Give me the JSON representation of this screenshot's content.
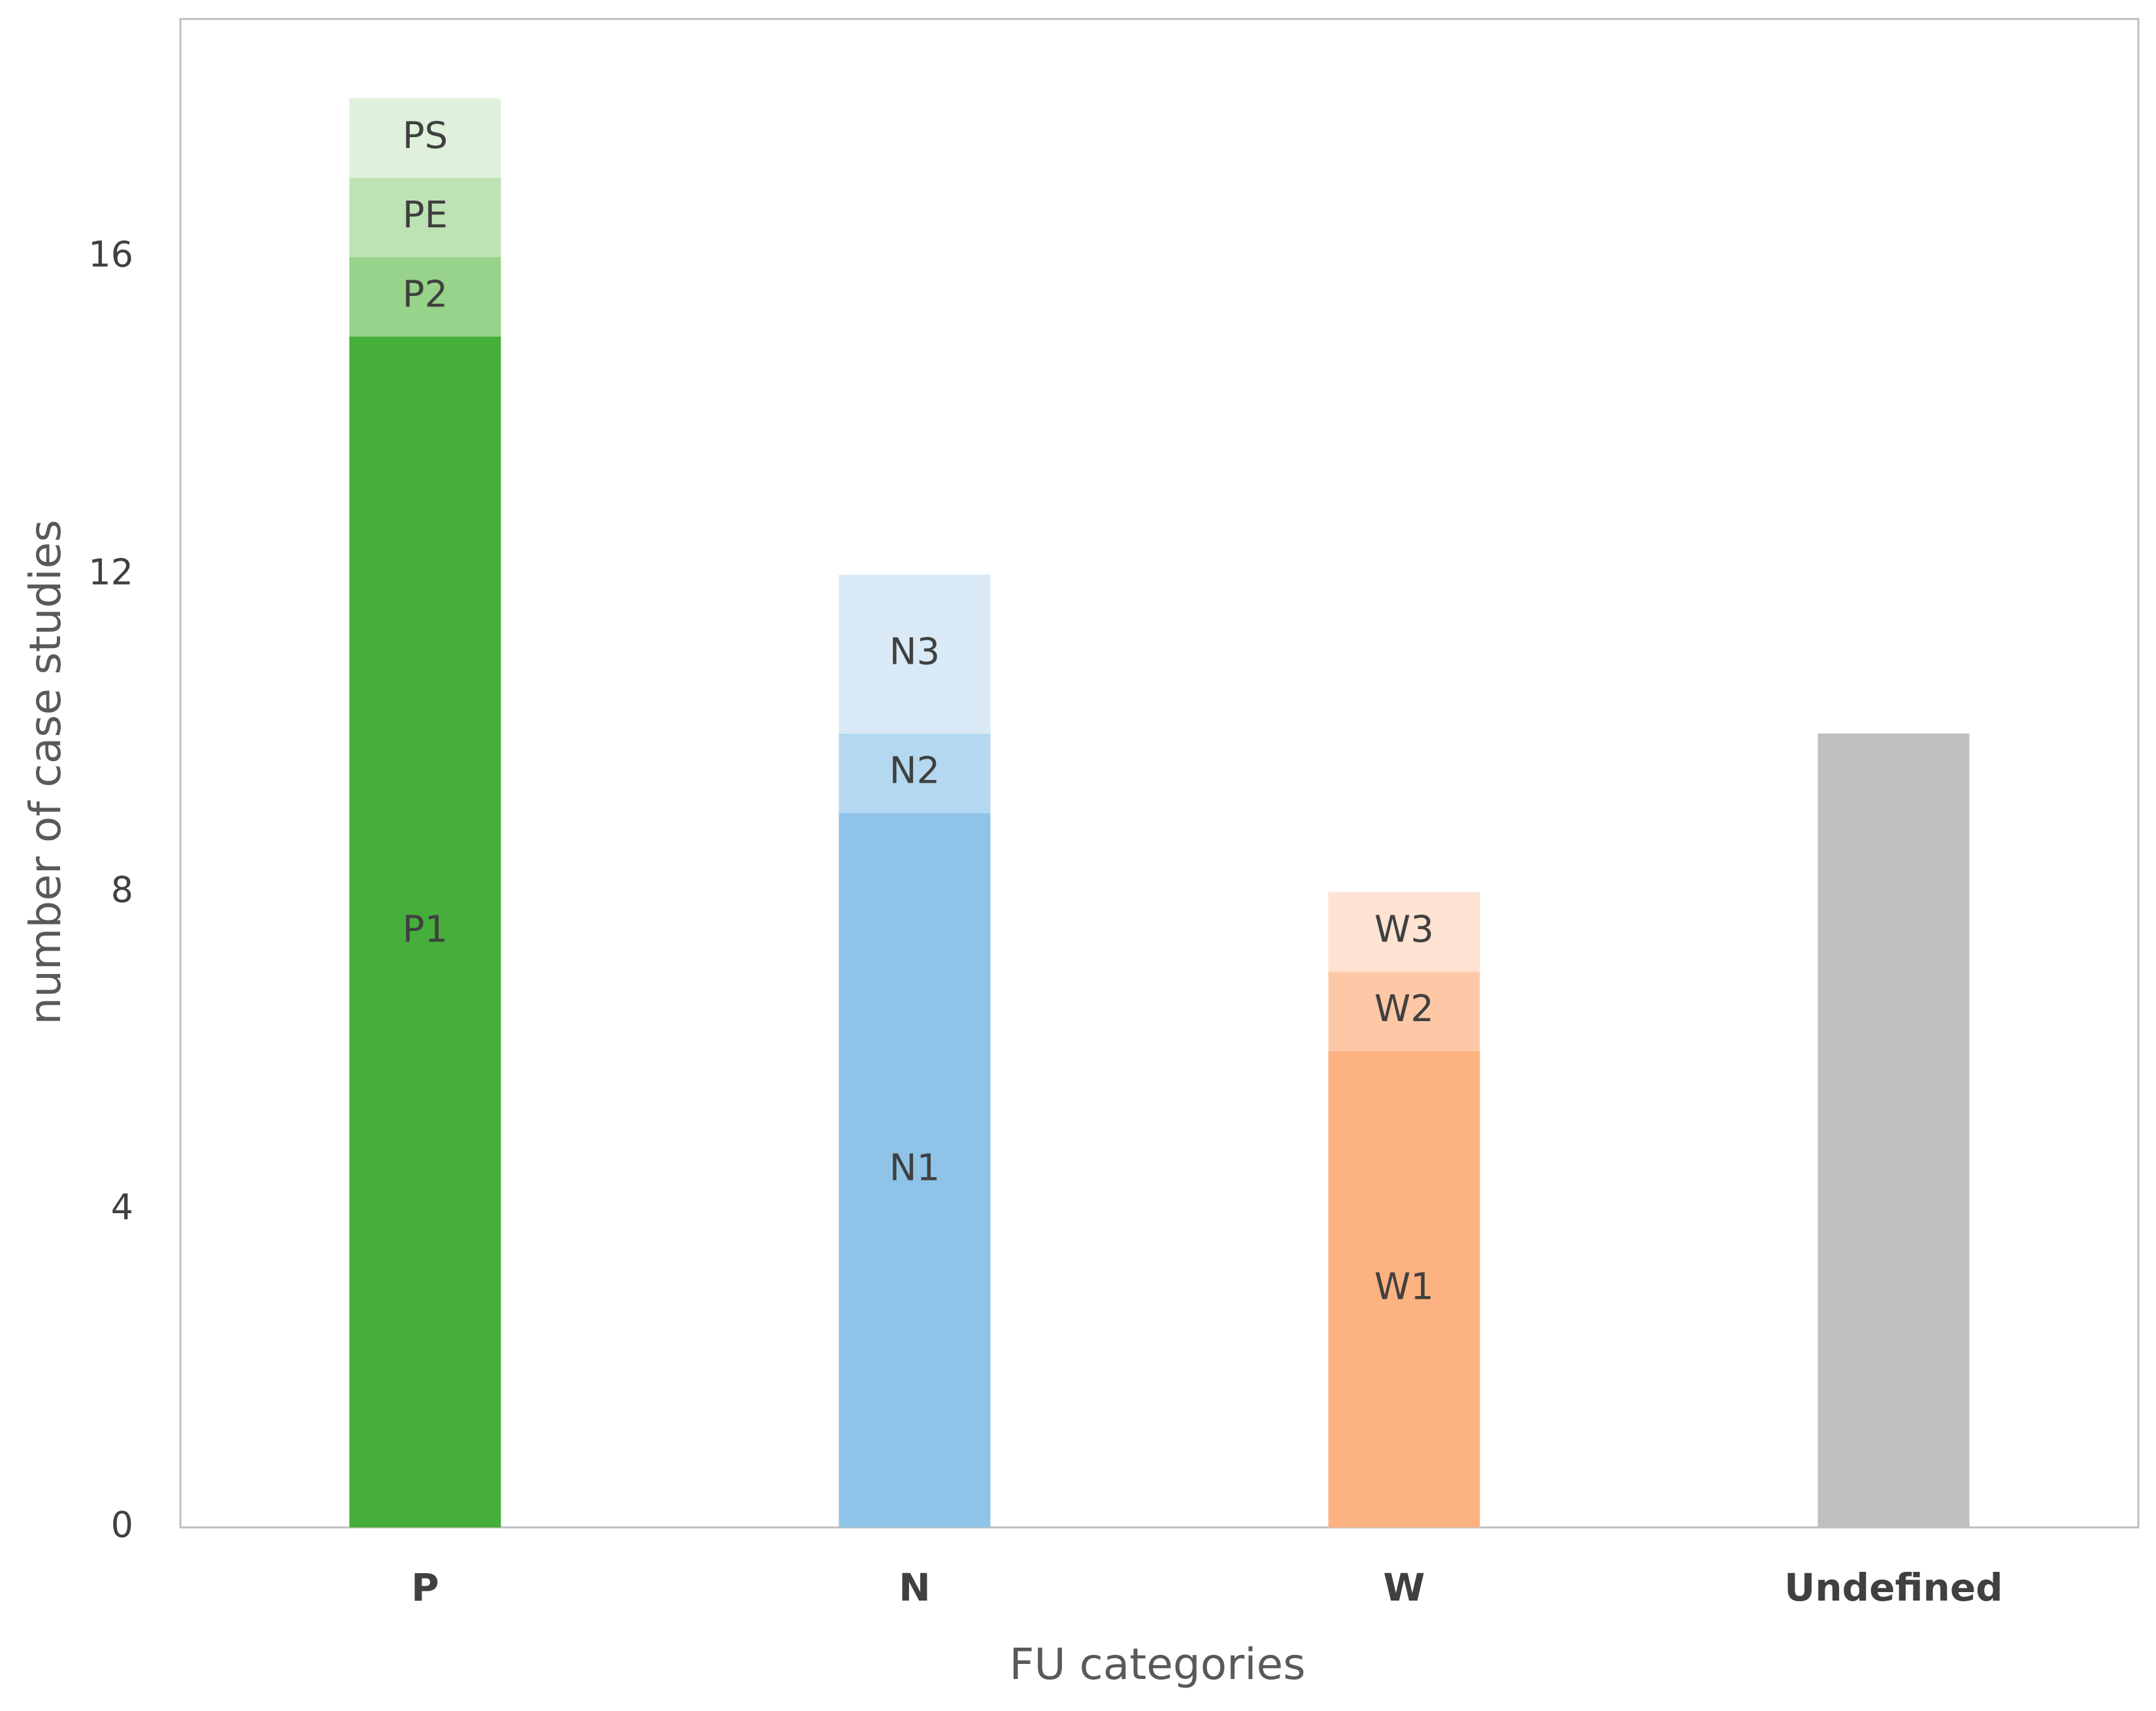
{
  "chart_data": {
    "type": "stacked-bar",
    "x_label": "FU categories",
    "y_label": "number of case studies",
    "categories": [
      "P",
      "N",
      "W",
      "Undefined"
    ],
    "series": [
      {
        "name": "P1",
        "color": "#46ae3a",
        "values": [
          15,
          null,
          null,
          null
        ]
      },
      {
        "name": "P2",
        "color": "#97d38a",
        "values": [
          1,
          null,
          null,
          null
        ]
      },
      {
        "name": "PE",
        "color": "#bde3b4",
        "values": [
          1,
          null,
          null,
          null
        ]
      },
      {
        "name": "PS",
        "color": "#dff1da",
        "values": [
          1,
          null,
          null,
          null
        ]
      },
      {
        "name": "N1",
        "color": "#8fc4e8",
        "values": [
          null,
          9,
          null,
          null
        ]
      },
      {
        "name": "N2",
        "color": "#b4d8f0",
        "values": [
          null,
          1,
          null,
          null
        ]
      },
      {
        "name": "N3",
        "color": "#d9eaf6",
        "values": [
          null,
          2,
          null,
          null
        ]
      },
      {
        "name": "W1",
        "color": "#fdb282",
        "values": [
          null,
          null,
          6,
          null
        ]
      },
      {
        "name": "W2",
        "color": "#fdc8a6",
        "values": [
          null,
          null,
          1,
          null
        ]
      },
      {
        "name": "W3",
        "color": "#fee2d2",
        "values": [
          null,
          null,
          1,
          null
        ]
      },
      {
        "color": "#bfbfbf",
        "values": [
          null,
          null,
          null,
          10
        ]
      }
    ],
    "ylim": [
      0,
      19
    ],
    "yticks": [
      0,
      4,
      8,
      12,
      16
    ],
    "grid": false
  }
}
